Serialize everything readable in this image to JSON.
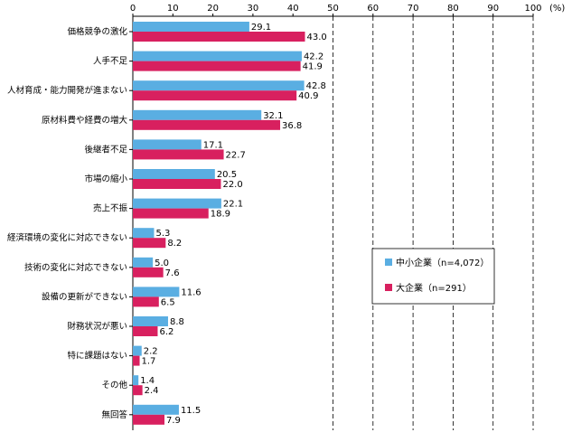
{
  "chart_data": {
    "type": "bar",
    "orientation": "horizontal",
    "x_unit": "(%)",
    "xlim": [
      0,
      100
    ],
    "x_ticks": [
      0,
      10,
      20,
      30,
      40,
      50,
      60,
      70,
      80,
      90,
      100
    ],
    "grid": "dashed vertical lines at 50–100",
    "legend_placement": "right-middle",
    "categories": [
      "価格競争の激化",
      "人手不足",
      "人材育成・能力開発が進まない",
      "原材料費や経費の増大",
      "後継者不足",
      "市場の縮小",
      "売上不振",
      "経済環境の変化に対応できない",
      "技術の変化に対応できない",
      "設備の更新ができない",
      "財務状況が悪い",
      "特に課題はない",
      "その他",
      "無回答"
    ],
    "series": [
      {
        "name": "中小企業（n=4,072）",
        "color": "#5aaee2",
        "values": [
          29.1,
          42.2,
          42.8,
          32.1,
          17.1,
          20.5,
          22.1,
          5.3,
          5.0,
          11.6,
          8.8,
          2.2,
          1.4,
          11.5
        ]
      },
      {
        "name": "大企業（n=291）",
        "color": "#d8205f",
        "values": [
          43.0,
          41.9,
          40.9,
          36.8,
          22.7,
          22.0,
          18.9,
          8.2,
          7.6,
          6.5,
          6.2,
          1.7,
          2.4,
          7.9
        ]
      }
    ]
  }
}
